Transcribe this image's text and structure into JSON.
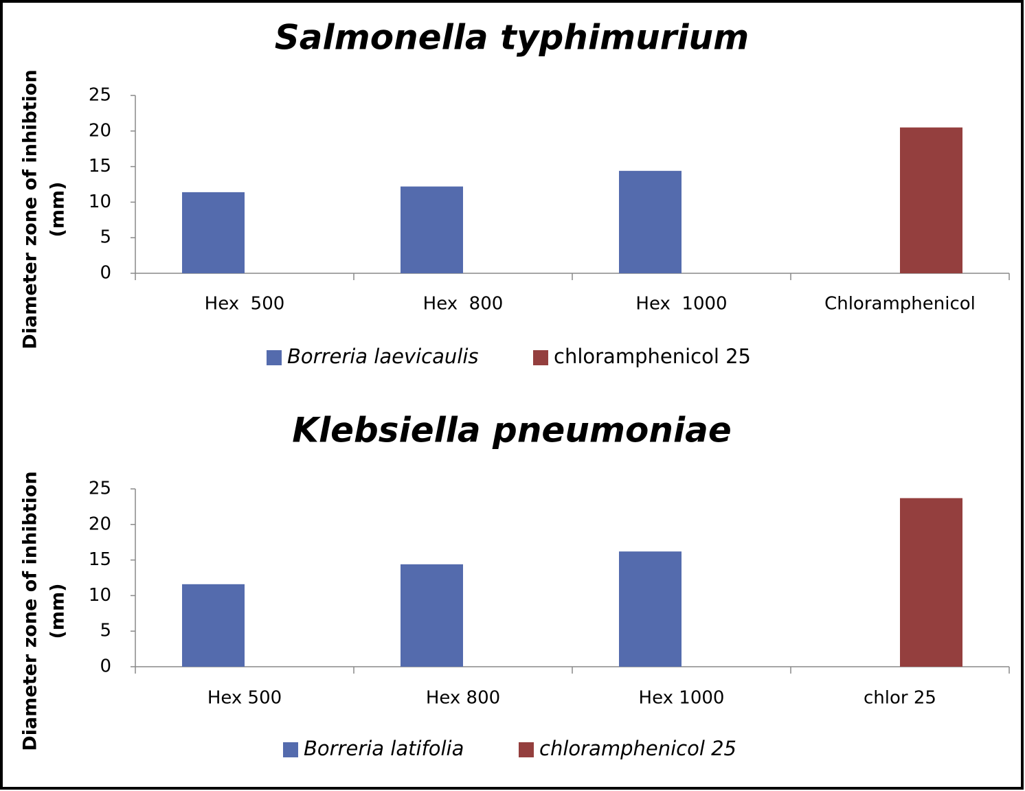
{
  "chart_data": [
    {
      "type": "bar",
      "title": "Salmonella typhimurium",
      "y_label": [
        "Diameter zone of inhibtion",
        "(mm)"
      ],
      "categories": [
        "Hex  500",
        "Hex  800",
        "Hex  1000",
        "Chloramphenicol"
      ],
      "series": [
        {
          "name": "Borreria laevicaulis",
          "color": "#546bad",
          "values": [
            11.4,
            12.2,
            14.4,
            null
          ]
        },
        {
          "name": "chloramphenicol 25",
          "color": "#943f3e",
          "values": [
            null,
            null,
            null,
            20.5
          ]
        }
      ],
      "ylim": [
        0,
        25
      ],
      "yticks": [
        0,
        5,
        10,
        15,
        20,
        25
      ],
      "grid": false,
      "legend": "bottom"
    },
    {
      "type": "bar",
      "title": "Klebsiella pneumoniae",
      "y_label": [
        "Diameter zone of inhibtion",
        "(mm)"
      ],
      "categories": [
        "Hex 500",
        "Hex 800",
        "Hex 1000",
        "chlor 25"
      ],
      "series": [
        {
          "name": "Borreria latifolia",
          "color": "#546bad",
          "values": [
            11.6,
            14.4,
            16.2,
            null
          ]
        },
        {
          "name": "chloramphenicol 25",
          "color": "#943f3e",
          "values": [
            null,
            null,
            null,
            23.7
          ]
        }
      ],
      "ylim": [
        0,
        25
      ],
      "yticks": [
        0,
        5,
        10,
        15,
        20,
        25
      ],
      "grid": false,
      "legend": "bottom"
    }
  ]
}
